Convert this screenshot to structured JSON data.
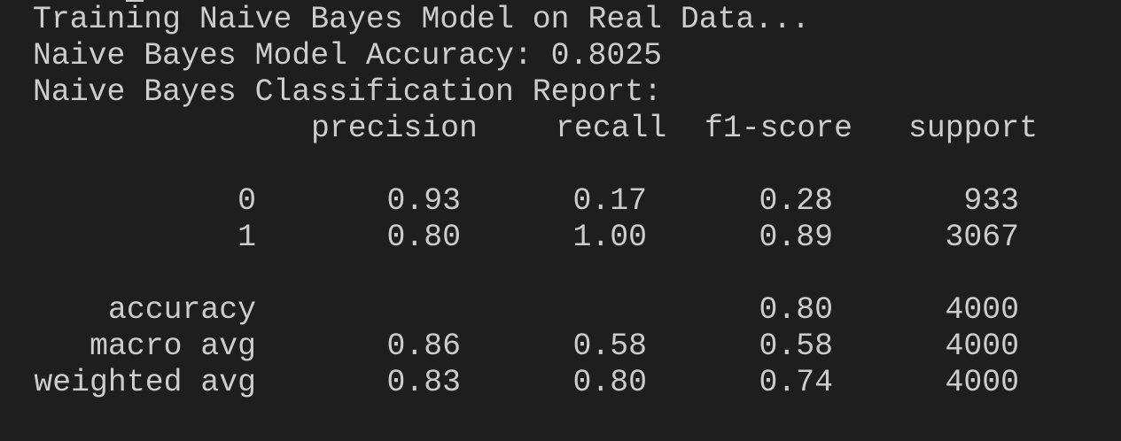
{
  "terminal": {
    "lines": [
      "Training Naive Bayes Model on Real Data...",
      "Naive Bayes Model Accuracy: 0.8025",
      "Naive Bayes Classification Report:"
    ],
    "report": {
      "headers": [
        "precision",
        "recall",
        "f1-score",
        "support"
      ],
      "rows": [
        {
          "label": "0",
          "precision": "0.93",
          "recall": "0.17",
          "f1": "0.28",
          "support": "933"
        },
        {
          "label": "1",
          "precision": "0.80",
          "recall": "1.00",
          "f1": "0.89",
          "support": "3067"
        },
        {
          "label": "accuracy",
          "precision": "",
          "recall": "",
          "f1": "0.80",
          "support": "4000"
        },
        {
          "label": "macro avg",
          "precision": "0.86",
          "recall": "0.58",
          "f1": "0.58",
          "support": "4000"
        },
        {
          "label": "weighted avg",
          "precision": "0.83",
          "recall": "0.80",
          "f1": "0.74",
          "support": "4000"
        }
      ]
    },
    "colors": {
      "background": "#1e1e1e",
      "text": "#cccccc"
    }
  }
}
